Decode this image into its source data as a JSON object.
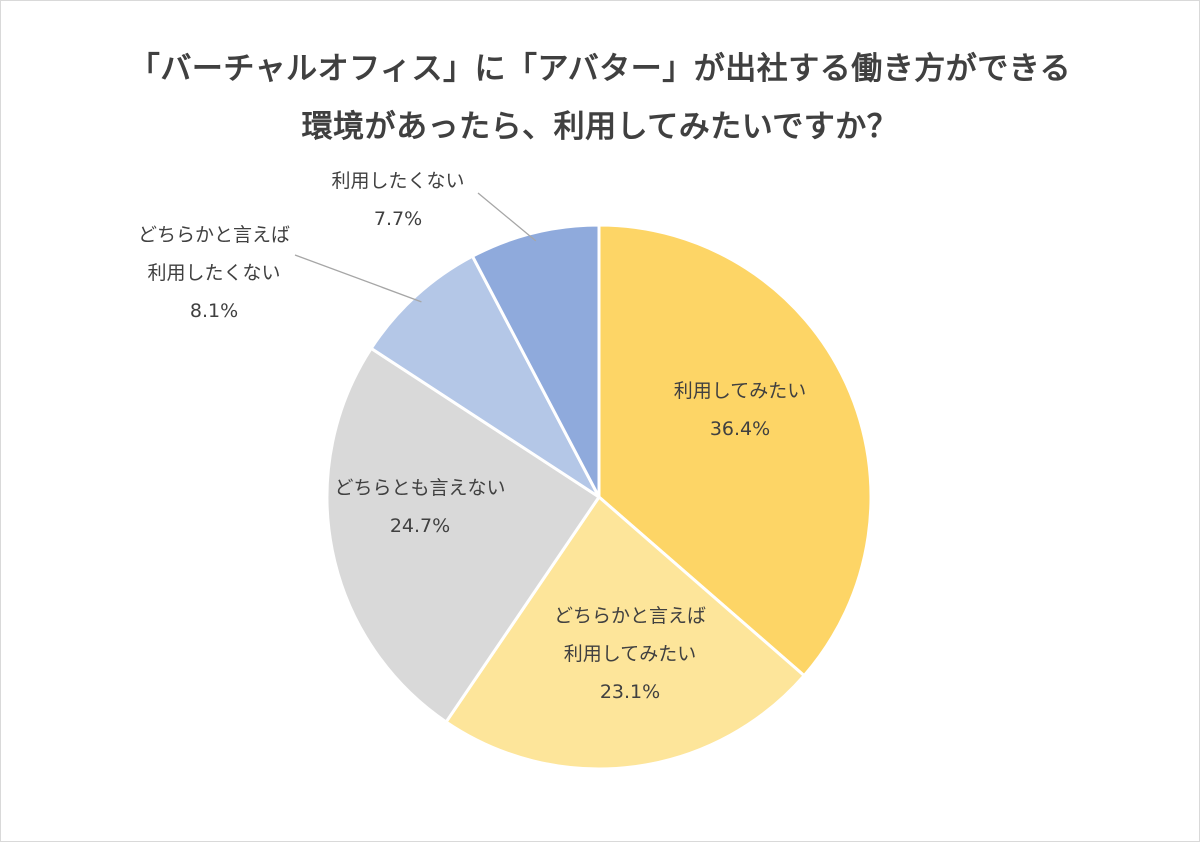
{
  "chart_data": {
    "type": "pie",
    "title_lines": [
      "「バーチャルオフィス」に「アバター」が出社する働き方ができる",
      "環境があったら、利用してみたいですか？"
    ],
    "start_angle_deg": 0,
    "direction": "clockwise",
    "slices": [
      {
        "label_lines": [
          "利用してみたい"
        ],
        "value": 36.4,
        "value_label": "36.4%",
        "color": "#fdd566",
        "label_placement": "inside"
      },
      {
        "label_lines": [
          "どちらかと言えば",
          "利用してみたい"
        ],
        "value": 23.1,
        "value_label": "23.1%",
        "color": "#fde59a",
        "label_placement": "inside"
      },
      {
        "label_lines": [
          "どちらとも言えない"
        ],
        "value": 24.7,
        "value_label": "24.7%",
        "color": "#d9d9d9",
        "label_placement": "inside"
      },
      {
        "label_lines": [
          "どちらかと言えば",
          "利用したくない"
        ],
        "value": 8.1,
        "value_label": "8.1%",
        "color": "#b4c7e7",
        "label_placement": "outside"
      },
      {
        "label_lines": [
          "利用したくない"
        ],
        "value": 7.7,
        "value_label": "7.7%",
        "color": "#8faadc",
        "label_placement": "outside"
      }
    ],
    "slice_border_color": "#ffffff",
    "leader_line_color": "#a6a6a6",
    "text_color": "#404040",
    "legend": "none"
  }
}
